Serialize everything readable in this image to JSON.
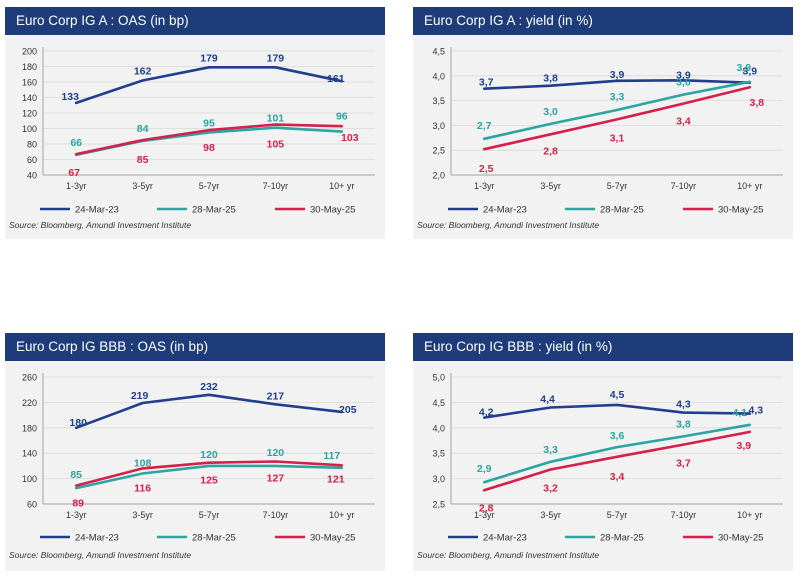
{
  "source_note": "Source: Bloomberg, Amundi Investment Institute",
  "colors": {
    "header_bg": "#1f3c7a",
    "series": [
      "#203e8c",
      "#2aa5a0",
      "#d4204a"
    ]
  },
  "chart_data": [
    {
      "type": "line",
      "title": "Euro Corp IG A : OAS (in bp)",
      "categories": [
        "1-3yr",
        "3-5yr",
        "5-7yr",
        "7-10yr",
        "10+ yr"
      ],
      "ylim": [
        40,
        200
      ],
      "yticks": [
        "40",
        "60",
        "80",
        "100",
        "120",
        "140",
        "160",
        "180",
        "200"
      ],
      "ytick_values": [
        40,
        60,
        80,
        100,
        120,
        140,
        160,
        180,
        200
      ],
      "series": [
        {
          "name": "24-Mar-23",
          "values": [
            133,
            162,
            179,
            179,
            161
          ],
          "labels": [
            "133",
            "162",
            "179",
            "179",
            "161"
          ]
        },
        {
          "name": "28-Mar-25",
          "values": [
            66,
            84,
            95,
            101,
            96
          ],
          "labels": [
            "66",
            "84",
            "95",
            "101",
            "96"
          ]
        },
        {
          "name": "30-May-25",
          "values": [
            67,
            85,
            98,
            105,
            103
          ],
          "labels": [
            "67",
            "85",
            "98",
            "105",
            "103"
          ]
        }
      ]
    },
    {
      "type": "line",
      "title": "Euro Corp IG A : yield (in %)",
      "categories": [
        "1-3yr",
        "3-5yr",
        "5-7yr",
        "7-10yr",
        "10+ yr"
      ],
      "ylim": [
        2.0,
        4.5
      ],
      "yticks": [
        "2,0",
        "2,5",
        "3,0",
        "3,5",
        "4,0",
        "4,5"
      ],
      "ytick_values": [
        2.0,
        2.5,
        3.0,
        3.5,
        4.0,
        4.5
      ],
      "series": [
        {
          "name": "24-Mar-23",
          "values": [
            3.74,
            3.8,
            3.9,
            3.91,
            3.86
          ],
          "labels": [
            "3,7",
            "3,8",
            "3,9",
            "3,9",
            "3,9"
          ]
        },
        {
          "name": "28-Mar-25",
          "values": [
            2.73,
            3.03,
            3.31,
            3.62,
            3.88
          ],
          "labels": [
            "2,7",
            "3,0",
            "3,3",
            "3,6",
            "3,9"
          ]
        },
        {
          "name": "30-May-25",
          "values": [
            2.52,
            2.82,
            3.12,
            3.44,
            3.77
          ],
          "labels": [
            "2,5",
            "2,8",
            "3,1",
            "3,4",
            "3,8"
          ]
        }
      ]
    },
    {
      "type": "line",
      "title": "Euro Corp IG BBB : OAS (in bp)",
      "categories": [
        "1-3yr",
        "3-5yr",
        "5-7yr",
        "7-10yr",
        "10+ yr"
      ],
      "ylim": [
        60,
        260
      ],
      "yticks": [
        "60",
        "100",
        "140",
        "180",
        "220",
        "260"
      ],
      "ytick_values": [
        60,
        100,
        140,
        180,
        220,
        260
      ],
      "series": [
        {
          "name": "24-Mar-23",
          "values": [
            180,
            219,
            232,
            217,
            205
          ],
          "labels": [
            "180",
            "219",
            "232",
            "217",
            "205"
          ]
        },
        {
          "name": "28-Mar-25",
          "values": [
            85,
            108,
            120,
            120,
            117
          ],
          "labels": [
            "85",
            "108",
            "120",
            "120",
            "117"
          ]
        },
        {
          "name": "30-May-25",
          "values": [
            89,
            116,
            125,
            127,
            121
          ],
          "labels": [
            "89",
            "116",
            "125",
            "127",
            "121"
          ]
        }
      ]
    },
    {
      "type": "line",
      "title": "Euro Corp IG BBB : yield (in %)",
      "categories": [
        "1-3yr",
        "3-5yr",
        "5-7yr",
        "7-10yr",
        "10+ yr"
      ],
      "ylim": [
        2.5,
        5.0
      ],
      "yticks": [
        "2,5",
        "3,0",
        "3,5",
        "4,0",
        "4,5",
        "5,0"
      ],
      "ytick_values": [
        2.5,
        3.0,
        3.5,
        4.0,
        4.5,
        5.0
      ],
      "series": [
        {
          "name": "24-Mar-23",
          "values": [
            4.2,
            4.4,
            4.45,
            4.3,
            4.28
          ],
          "labels": [
            "4,2",
            "4,4",
            "4,5",
            "4,3",
            "4,3"
          ]
        },
        {
          "name": "28-Mar-25",
          "values": [
            2.93,
            3.33,
            3.62,
            3.83,
            4.06
          ],
          "labels": [
            "2,9",
            "3,3",
            "3,6",
            "3,8",
            "4,1"
          ]
        },
        {
          "name": "30-May-25",
          "values": [
            2.77,
            3.18,
            3.43,
            3.67,
            3.92
          ],
          "labels": [
            "2,8",
            "3,2",
            "3,4",
            "3,7",
            "3,9"
          ]
        }
      ]
    }
  ]
}
